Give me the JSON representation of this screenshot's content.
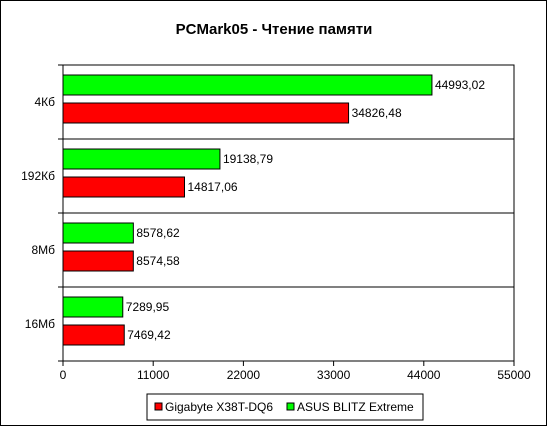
{
  "chart_data": {
    "type": "bar",
    "orientation": "horizontal",
    "title": "PCMark05 - Чтение памяти",
    "xlabel": "",
    "ylabel": "",
    "categories": [
      "4Кб",
      "192Кб",
      "8Мб",
      "16Мб"
    ],
    "series": [
      {
        "name": "ASUS BLITZ Extreme",
        "color": "#00ff00",
        "values": [
          44993.02,
          19138.79,
          8578.62,
          7289.95
        ],
        "labels": [
          "44993,02",
          "19138,79",
          "8578,62",
          "7289,95"
        ]
      },
      {
        "name": "Gigabyte X38T-DQ6",
        "color": "#ff0000",
        "values": [
          34826.48,
          14817.06,
          8574.58,
          7469.42
        ],
        "labels": [
          "34826,48",
          "14817,06",
          "8574,58",
          "7469,42"
        ]
      }
    ],
    "xlim": [
      0,
      55000
    ],
    "xticks": [
      0,
      11000,
      22000,
      33000,
      44000,
      55000
    ],
    "grid": "horizontal category separators",
    "legend": {
      "position": "bottom",
      "entries": [
        {
          "name": "Gigabyte X38T-DQ6",
          "color": "#ff0000"
        },
        {
          "name": "ASUS BLITZ Extreme",
          "color": "#00ff00"
        }
      ]
    }
  }
}
